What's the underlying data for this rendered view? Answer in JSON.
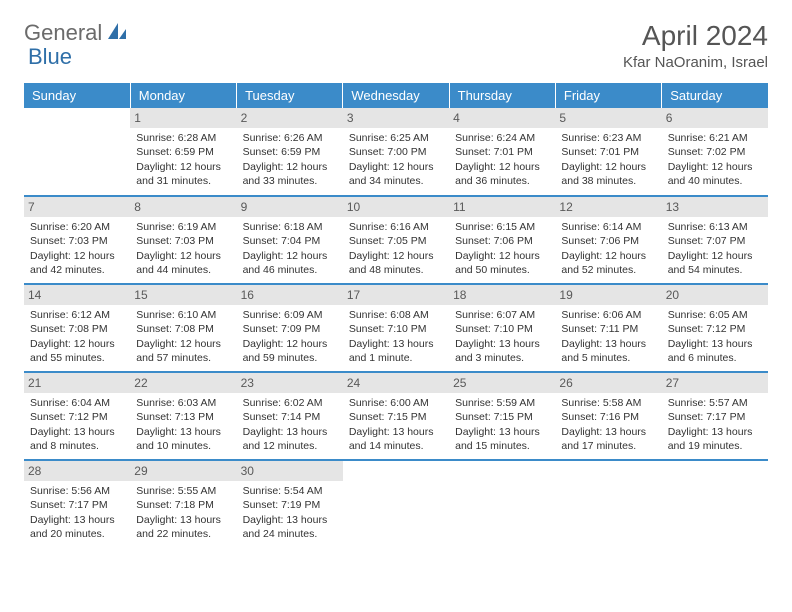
{
  "logo": {
    "part1": "General",
    "part2": "Blue"
  },
  "title": "April 2024",
  "location": "Kfar NaOranim, Israel",
  "day_headers": [
    "Sunday",
    "Monday",
    "Tuesday",
    "Wednesday",
    "Thursday",
    "Friday",
    "Saturday"
  ],
  "colors": {
    "header_bg": "#3b8bc9",
    "header_text": "#ffffff",
    "daynum_bg": "#e5e5e5",
    "rule": "#3b8bc9",
    "logo_gray": "#6b6b6b",
    "logo_blue": "#2f6fa8"
  },
  "weeks": [
    [
      {
        "empty": true
      },
      {
        "day": "1",
        "sunrise": "Sunrise: 6:28 AM",
        "sunset": "Sunset: 6:59 PM",
        "dl1": "Daylight: 12 hours",
        "dl2": "and 31 minutes."
      },
      {
        "day": "2",
        "sunrise": "Sunrise: 6:26 AM",
        "sunset": "Sunset: 6:59 PM",
        "dl1": "Daylight: 12 hours",
        "dl2": "and 33 minutes."
      },
      {
        "day": "3",
        "sunrise": "Sunrise: 6:25 AM",
        "sunset": "Sunset: 7:00 PM",
        "dl1": "Daylight: 12 hours",
        "dl2": "and 34 minutes."
      },
      {
        "day": "4",
        "sunrise": "Sunrise: 6:24 AM",
        "sunset": "Sunset: 7:01 PM",
        "dl1": "Daylight: 12 hours",
        "dl2": "and 36 minutes."
      },
      {
        "day": "5",
        "sunrise": "Sunrise: 6:23 AM",
        "sunset": "Sunset: 7:01 PM",
        "dl1": "Daylight: 12 hours",
        "dl2": "and 38 minutes."
      },
      {
        "day": "6",
        "sunrise": "Sunrise: 6:21 AM",
        "sunset": "Sunset: 7:02 PM",
        "dl1": "Daylight: 12 hours",
        "dl2": "and 40 minutes."
      }
    ],
    [
      {
        "day": "7",
        "sunrise": "Sunrise: 6:20 AM",
        "sunset": "Sunset: 7:03 PM",
        "dl1": "Daylight: 12 hours",
        "dl2": "and 42 minutes."
      },
      {
        "day": "8",
        "sunrise": "Sunrise: 6:19 AM",
        "sunset": "Sunset: 7:03 PM",
        "dl1": "Daylight: 12 hours",
        "dl2": "and 44 minutes."
      },
      {
        "day": "9",
        "sunrise": "Sunrise: 6:18 AM",
        "sunset": "Sunset: 7:04 PM",
        "dl1": "Daylight: 12 hours",
        "dl2": "and 46 minutes."
      },
      {
        "day": "10",
        "sunrise": "Sunrise: 6:16 AM",
        "sunset": "Sunset: 7:05 PM",
        "dl1": "Daylight: 12 hours",
        "dl2": "and 48 minutes."
      },
      {
        "day": "11",
        "sunrise": "Sunrise: 6:15 AM",
        "sunset": "Sunset: 7:06 PM",
        "dl1": "Daylight: 12 hours",
        "dl2": "and 50 minutes."
      },
      {
        "day": "12",
        "sunrise": "Sunrise: 6:14 AM",
        "sunset": "Sunset: 7:06 PM",
        "dl1": "Daylight: 12 hours",
        "dl2": "and 52 minutes."
      },
      {
        "day": "13",
        "sunrise": "Sunrise: 6:13 AM",
        "sunset": "Sunset: 7:07 PM",
        "dl1": "Daylight: 12 hours",
        "dl2": "and 54 minutes."
      }
    ],
    [
      {
        "day": "14",
        "sunrise": "Sunrise: 6:12 AM",
        "sunset": "Sunset: 7:08 PM",
        "dl1": "Daylight: 12 hours",
        "dl2": "and 55 minutes."
      },
      {
        "day": "15",
        "sunrise": "Sunrise: 6:10 AM",
        "sunset": "Sunset: 7:08 PM",
        "dl1": "Daylight: 12 hours",
        "dl2": "and 57 minutes."
      },
      {
        "day": "16",
        "sunrise": "Sunrise: 6:09 AM",
        "sunset": "Sunset: 7:09 PM",
        "dl1": "Daylight: 12 hours",
        "dl2": "and 59 minutes."
      },
      {
        "day": "17",
        "sunrise": "Sunrise: 6:08 AM",
        "sunset": "Sunset: 7:10 PM",
        "dl1": "Daylight: 13 hours",
        "dl2": "and 1 minute."
      },
      {
        "day": "18",
        "sunrise": "Sunrise: 6:07 AM",
        "sunset": "Sunset: 7:10 PM",
        "dl1": "Daylight: 13 hours",
        "dl2": "and 3 minutes."
      },
      {
        "day": "19",
        "sunrise": "Sunrise: 6:06 AM",
        "sunset": "Sunset: 7:11 PM",
        "dl1": "Daylight: 13 hours",
        "dl2": "and 5 minutes."
      },
      {
        "day": "20",
        "sunrise": "Sunrise: 6:05 AM",
        "sunset": "Sunset: 7:12 PM",
        "dl1": "Daylight: 13 hours",
        "dl2": "and 6 minutes."
      }
    ],
    [
      {
        "day": "21",
        "sunrise": "Sunrise: 6:04 AM",
        "sunset": "Sunset: 7:12 PM",
        "dl1": "Daylight: 13 hours",
        "dl2": "and 8 minutes."
      },
      {
        "day": "22",
        "sunrise": "Sunrise: 6:03 AM",
        "sunset": "Sunset: 7:13 PM",
        "dl1": "Daylight: 13 hours",
        "dl2": "and 10 minutes."
      },
      {
        "day": "23",
        "sunrise": "Sunrise: 6:02 AM",
        "sunset": "Sunset: 7:14 PM",
        "dl1": "Daylight: 13 hours",
        "dl2": "and 12 minutes."
      },
      {
        "day": "24",
        "sunrise": "Sunrise: 6:00 AM",
        "sunset": "Sunset: 7:15 PM",
        "dl1": "Daylight: 13 hours",
        "dl2": "and 14 minutes."
      },
      {
        "day": "25",
        "sunrise": "Sunrise: 5:59 AM",
        "sunset": "Sunset: 7:15 PM",
        "dl1": "Daylight: 13 hours",
        "dl2": "and 15 minutes."
      },
      {
        "day": "26",
        "sunrise": "Sunrise: 5:58 AM",
        "sunset": "Sunset: 7:16 PM",
        "dl1": "Daylight: 13 hours",
        "dl2": "and 17 minutes."
      },
      {
        "day": "27",
        "sunrise": "Sunrise: 5:57 AM",
        "sunset": "Sunset: 7:17 PM",
        "dl1": "Daylight: 13 hours",
        "dl2": "and 19 minutes."
      }
    ],
    [
      {
        "day": "28",
        "sunrise": "Sunrise: 5:56 AM",
        "sunset": "Sunset: 7:17 PM",
        "dl1": "Daylight: 13 hours",
        "dl2": "and 20 minutes."
      },
      {
        "day": "29",
        "sunrise": "Sunrise: 5:55 AM",
        "sunset": "Sunset: 7:18 PM",
        "dl1": "Daylight: 13 hours",
        "dl2": "and 22 minutes."
      },
      {
        "day": "30",
        "sunrise": "Sunrise: 5:54 AM",
        "sunset": "Sunset: 7:19 PM",
        "dl1": "Daylight: 13 hours",
        "dl2": "and 24 minutes."
      },
      {
        "empty": true
      },
      {
        "empty": true
      },
      {
        "empty": true
      },
      {
        "empty": true
      }
    ]
  ]
}
